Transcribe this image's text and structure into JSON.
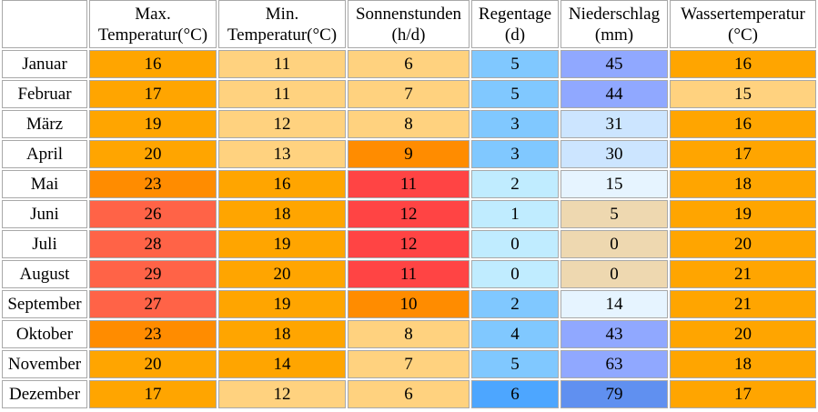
{
  "columns": [
    {
      "line1": "Max.",
      "line2": "Temperatur(°C)"
    },
    {
      "line1": "Min.",
      "line2": "Temperatur(°C)"
    },
    {
      "line1": "Sonnenstunden",
      "line2": "(h/d)"
    },
    {
      "line1": "Regentage",
      "line2": "(d)"
    },
    {
      "line1": "Niederschlag",
      "line2": "(mm)"
    },
    {
      "line1": "Wassertemperatur",
      "line2": "(°C)"
    }
  ],
  "rows": [
    {
      "month": "Januar",
      "values": [
        "16",
        "11",
        "6",
        "5",
        "45",
        "16"
      ]
    },
    {
      "month": "Februar",
      "values": [
        "17",
        "11",
        "7",
        "5",
        "44",
        "15"
      ]
    },
    {
      "month": "März",
      "values": [
        "19",
        "12",
        "8",
        "3",
        "31",
        "16"
      ]
    },
    {
      "month": "April",
      "values": [
        "20",
        "13",
        "9",
        "3",
        "30",
        "17"
      ]
    },
    {
      "month": "Mai",
      "values": [
        "23",
        "16",
        "11",
        "2",
        "15",
        "18"
      ]
    },
    {
      "month": "Juni",
      "values": [
        "26",
        "18",
        "12",
        "1",
        "5",
        "19"
      ]
    },
    {
      "month": "Juli",
      "values": [
        "28",
        "19",
        "12",
        "0",
        "0",
        "20"
      ]
    },
    {
      "month": "August",
      "values": [
        "29",
        "20",
        "11",
        "0",
        "0",
        "21"
      ]
    },
    {
      "month": "September",
      "values": [
        "27",
        "19",
        "10",
        "2",
        "14",
        "21"
      ]
    },
    {
      "month": "Oktober",
      "values": [
        "23",
        "18",
        "8",
        "4",
        "43",
        "20"
      ]
    },
    {
      "month": "November",
      "values": [
        "20",
        "14",
        "7",
        "5",
        "63",
        "18"
      ]
    },
    {
      "month": "Dezember",
      "values": [
        "17",
        "12",
        "6",
        "6",
        "79",
        "17"
      ]
    }
  ],
  "cell_colors": [
    [
      "#ffa500",
      "#ffd27f",
      "#ffd27f",
      "#80c8ff",
      "#90a8ff",
      "#ffa500"
    ],
    [
      "#ffa500",
      "#ffd27f",
      "#ffd27f",
      "#80c8ff",
      "#90a8ff",
      "#ffd27f"
    ],
    [
      "#ffa500",
      "#ffd27f",
      "#ffd27f",
      "#80c8ff",
      "#cce5ff",
      "#ffa500"
    ],
    [
      "#ffa500",
      "#ffd27f",
      "#ff8c00",
      "#80c8ff",
      "#cce5ff",
      "#ffa500"
    ],
    [
      "#ff8c00",
      "#ffa500",
      "#ff4444",
      "#c0ecff",
      "#e6f4ff",
      "#ffa500"
    ],
    [
      "#ff6347",
      "#ffa500",
      "#ff4444",
      "#c0ecff",
      "#eed8b0",
      "#ffa500"
    ],
    [
      "#ff6347",
      "#ffa500",
      "#ff4444",
      "#c0ecff",
      "#eed8b0",
      "#ffa500"
    ],
    [
      "#ff6347",
      "#ffa500",
      "#ff4444",
      "#c0ecff",
      "#eed8b0",
      "#ffa500"
    ],
    [
      "#ff6347",
      "#ffa500",
      "#ff8c00",
      "#80c8ff",
      "#e6f4ff",
      "#ffa500"
    ],
    [
      "#ff8c00",
      "#ffa500",
      "#ffd27f",
      "#80c8ff",
      "#90a8ff",
      "#ffa500"
    ],
    [
      "#ffa500",
      "#ffa500",
      "#ffd27f",
      "#80c8ff",
      "#90a8ff",
      "#ffa500"
    ],
    [
      "#ffa500",
      "#ffd27f",
      "#ffd27f",
      "#4da6ff",
      "#6090f0",
      "#ffa500"
    ]
  ]
}
